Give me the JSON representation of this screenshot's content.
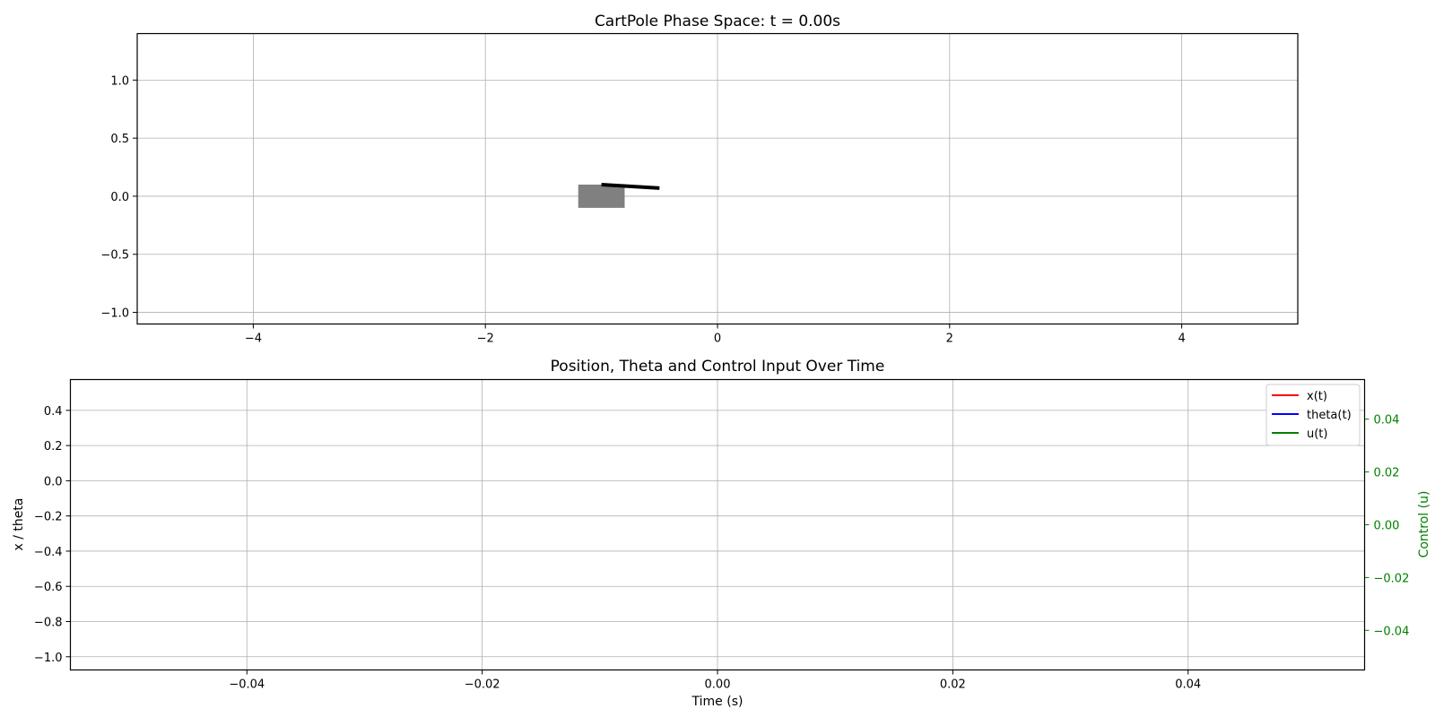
{
  "chart_data": [
    {
      "type": "scatter",
      "title": "CartPole Phase Space: t = 0.00s",
      "xlabel": "",
      "ylabel": "",
      "xlim": [
        -5,
        5
      ],
      "ylim": [
        -1.1,
        1.4
      ],
      "xticks": [
        -4,
        -2,
        0,
        2,
        4
      ],
      "xtick_labels": [
        "−4",
        "−2",
        "0",
        "2",
        "4"
      ],
      "yticks": [
        -1.0,
        -0.5,
        0.0,
        0.5,
        1.0
      ],
      "ytick_labels": [
        "−1.0",
        "−0.5",
        "0.0",
        "0.5",
        "1.0"
      ],
      "grid": true,
      "cart": {
        "x": [
          -1.2,
          -0.8
        ],
        "y": [
          -0.1,
          0.1
        ],
        "color": "#808080"
      },
      "pole": {
        "x": [
          -1.0,
          -0.5
        ],
        "y": [
          0.1,
          0.07
        ],
        "color": "#000000"
      }
    },
    {
      "type": "line",
      "title": "Position, Theta and Control Input Over Time",
      "xlabel": "Time (s)",
      "ylabel": "x / theta",
      "y2label": "Control (u)",
      "xlim": [
        -0.055,
        0.055
      ],
      "ylim": [
        -1.075,
        0.575
      ],
      "y2lim": [
        -0.055,
        0.055
      ],
      "xticks": [
        -0.04,
        -0.02,
        0.0,
        0.02,
        0.04
      ],
      "xtick_labels": [
        "−0.04",
        "−0.02",
        "0.00",
        "0.02",
        "0.04"
      ],
      "yticks": [
        -1.0,
        -0.8,
        -0.6,
        -0.4,
        -0.2,
        0.0,
        0.2,
        0.4
      ],
      "ytick_labels": [
        "−1.0",
        "−0.8",
        "−0.6",
        "−0.4",
        "−0.2",
        "0.0",
        "0.2",
        "0.4"
      ],
      "y2ticks": [
        -0.04,
        -0.02,
        0.0,
        0.02,
        0.04
      ],
      "y2tick_labels": [
        "−0.04",
        "−0.02",
        "0.00",
        "0.02",
        "0.04"
      ],
      "grid": true,
      "legend_position": "top-right",
      "series": [
        {
          "name": "x(t)",
          "color": "#ff0000",
          "x": [],
          "y": []
        },
        {
          "name": "theta(t)",
          "color": "#0000ff",
          "x": [],
          "y": []
        },
        {
          "name": "u(t)",
          "color": "#008000",
          "x": [],
          "y": []
        }
      ],
      "y2_color": "#008000"
    }
  ]
}
